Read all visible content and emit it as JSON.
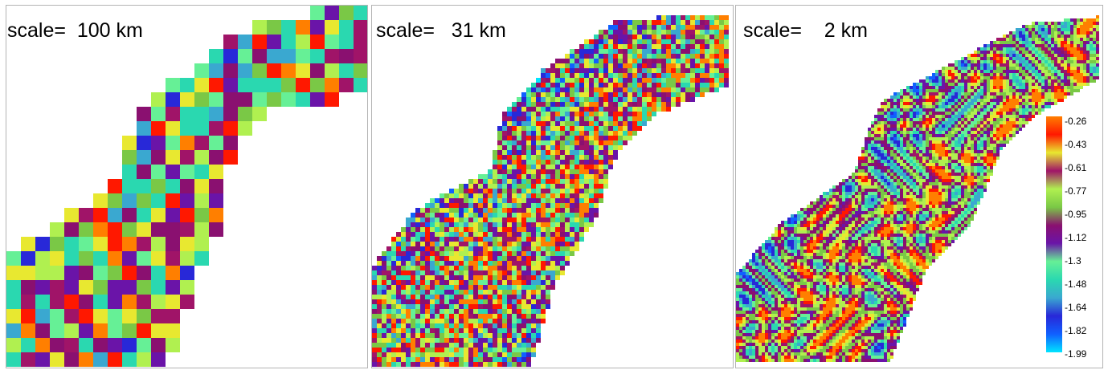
{
  "panels": [
    {
      "scale_label": "scale=  100 km",
      "resolution": "100 km",
      "cell_size": 18
    },
    {
      "scale_label": "scale=   31 km",
      "resolution": "31 km",
      "cell_size": 6
    },
    {
      "scale_label": "scale=    2 km",
      "resolution": "2 km",
      "cell_size": 2
    }
  ],
  "colorbar": {
    "ticks": [
      "-0.26",
      "-0.43",
      "-0.61",
      "-0.77",
      "-0.95",
      "-1.12",
      "-1.3",
      "-1.48",
      "-1.64",
      "-1.82",
      "-1.99"
    ],
    "min": -1.99,
    "max": -0.26,
    "palette": [
      "#00e5ff",
      "#1060ff",
      "#2828d8",
      "#3aa8d0",
      "#2ad8b0",
      "#66f096",
      "#6a14a8",
      "#8a1070",
      "#7ac846",
      "#b0f050",
      "#a01468",
      "#e8e830",
      "#ff1800",
      "#ff7f00"
    ]
  }
}
